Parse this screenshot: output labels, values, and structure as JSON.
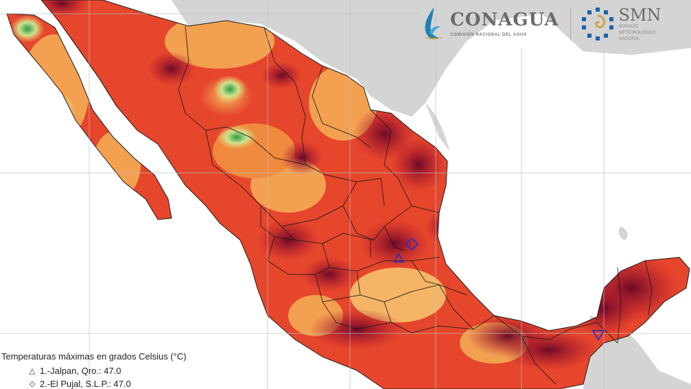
{
  "header": {
    "conagua": {
      "name": "CONAGUA",
      "subtitle": "COMISIÓN NACIONAL DEL AGUA",
      "icon": "water-drop-wave-icon"
    },
    "smn": {
      "name": "SMN",
      "subtitle_lines": [
        "SERVICIO",
        "METEOROLÓGICO",
        "NACIONAL"
      ],
      "icon": "spiral-sun-icon"
    }
  },
  "legend": {
    "title": "Temperaturas máximas en grados Celsius (°C)",
    "entries": [
      {
        "marker": "△",
        "marker_icon": "triangle-up-icon",
        "text": "1.-Jalpan, Qro.: 47.0"
      },
      {
        "marker": "◇",
        "marker_icon": "diamond-icon",
        "text": "2.-El Pujal, S.L.P.: 47.0"
      }
    ]
  },
  "colors": {
    "ocean": "#ffffff",
    "land_outside": "#d4d4d4",
    "grid": "#bdbdbd",
    "temp_low": "#3aa34a",
    "temp_mid_low": "#f7e08c",
    "temp_mid": "#f5a04a",
    "temp_high": "#e8502a",
    "temp_very_high": "#c8202c",
    "temp_extreme": "#7a0a2e",
    "marker_color": "#2a2acb",
    "conagua_blue": "#1f7fb5",
    "smn_blue": "#1a64a8",
    "smn_gold": "#c8a24a"
  }
}
